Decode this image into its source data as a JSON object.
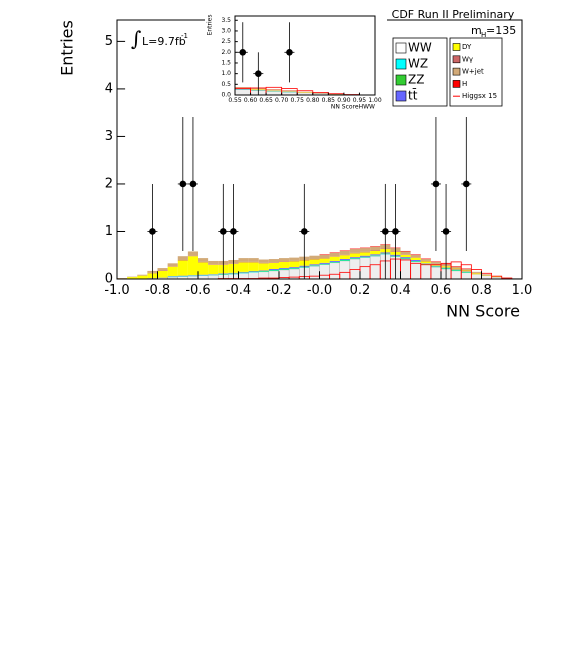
{
  "chart_data": {
    "type": "stacked-histogram",
    "title": "CDF Run II Preliminary",
    "xlabel": "NN Score",
    "ylabel": "Entries",
    "mass_label": "m",
    "mass_sub": "H",
    "mass_value": "=135",
    "lumi_integral": "∫",
    "lumi_label": "L=9.7fb",
    "lumi_sup": "-1",
    "xlim": [
      -1,
      1
    ],
    "ylim": [
      0,
      5.45
    ],
    "xticks": [
      {
        "value": -1,
        "label": "-1.0"
      },
      -0.8,
      -0.6,
      -0.4,
      -0.2,
      {
        "value": 0,
        "label": "-0.0"
      },
      0.2,
      0.4,
      0.6,
      0.8,
      {
        "value": 1,
        "label": "1.0"
      }
    ],
    "yticks": [
      0,
      1,
      2,
      3,
      4,
      5
    ],
    "bins": [
      -1,
      -0.95,
      -0.9,
      -0.85,
      -0.8,
      -0.75,
      -0.7,
      -0.65,
      -0.6,
      -0.55,
      -0.5,
      -0.45,
      -0.4,
      -0.35,
      -0.3,
      -0.25,
      -0.2,
      -0.15,
      -0.1,
      -0.05,
      0,
      0.05,
      0.1,
      0.15,
      0.2,
      0.25,
      0.3,
      0.35,
      0.4,
      0.45,
      0.5,
      0.55,
      0.6,
      0.65,
      0.7,
      0.75,
      0.8,
      0.85,
      0.9,
      0.95,
      1
    ],
    "series": [
      {
        "name": "WW",
        "color": "#eeeeee",
        "legend_column": 0,
        "values": [
          0,
          0.01,
          0.01,
          0.02,
          0.03,
          0.04,
          0.05,
          0.06,
          0.07,
          0.08,
          0.09,
          0.1,
          0.12,
          0.14,
          0.15,
          0.17,
          0.19,
          0.21,
          0.24,
          0.27,
          0.3,
          0.34,
          0.38,
          0.42,
          0.45,
          0.48,
          0.52,
          0.47,
          0.42,
          0.36,
          0.3,
          0.25,
          0.21,
          0.17,
          0.13,
          0.1,
          0.07,
          0.04,
          0.02,
          0.01
        ]
      },
      {
        "name": "WZ",
        "color": "#00ffff",
        "legend_column": 0,
        "values": [
          0,
          0,
          0,
          0,
          0,
          0.01,
          0.01,
          0.01,
          0.01,
          0.01,
          0.01,
          0.01,
          0.01,
          0.01,
          0.01,
          0.01,
          0.01,
          0.01,
          0.01,
          0.01,
          0.01,
          0.01,
          0.01,
          0.01,
          0.01,
          0.01,
          0.01,
          0.01,
          0.01,
          0.01,
          0.01,
          0.01,
          0.01,
          0.01,
          0.01,
          0,
          0,
          0,
          0,
          0
        ]
      },
      {
        "name": "ZZ",
        "color": "#33cc33",
        "legend_column": 0,
        "values": [
          0,
          0,
          0,
          0,
          0,
          0,
          0,
          0,
          0,
          0,
          0.01,
          0.01,
          0.01,
          0.01,
          0.01,
          0.01,
          0.01,
          0.01,
          0.01,
          0.01,
          0.01,
          0.01,
          0.01,
          0.01,
          0.01,
          0.01,
          0.01,
          0.01,
          0.01,
          0.01,
          0.01,
          0.01,
          0.01,
          0.01,
          0.01,
          0,
          0,
          0,
          0,
          0
        ]
      },
      {
        "name": "tt̄",
        "color": "#6666ff",
        "legend_column": 0,
        "values": [
          0,
          0,
          0,
          0,
          0,
          0.01,
          0.01,
          0.01,
          0.01,
          0.01,
          0.01,
          0.01,
          0.01,
          0.01,
          0.01,
          0.02,
          0.02,
          0.02,
          0.02,
          0.02,
          0.02,
          0.02,
          0.02,
          0.02,
          0.02,
          0.02,
          0.02,
          0.02,
          0.02,
          0.02,
          0.01,
          0.01,
          0.01,
          0.01,
          0.01,
          0,
          0,
          0,
          0,
          0
        ]
      },
      {
        "name": "DY",
        "color": "#ffff00",
        "legend_column": 1,
        "values": [
          0.01,
          0.03,
          0.06,
          0.1,
          0.14,
          0.2,
          0.32,
          0.4,
          0.26,
          0.2,
          0.18,
          0.19,
          0.2,
          0.18,
          0.15,
          0.13,
          0.13,
          0.12,
          0.11,
          0.1,
          0.09,
          0.09,
          0.08,
          0.08,
          0.07,
          0.07,
          0.07,
          0.06,
          0.05,
          0.05,
          0.04,
          0.03,
          0.03,
          0.02,
          0.02,
          0.02,
          0.01,
          0.01,
          0,
          0
        ]
      },
      {
        "name": "Wγ",
        "color": "#cc6666",
        "legend_column": 1,
        "values": [
          0,
          0,
          0,
          0.01,
          0.01,
          0.01,
          0.01,
          0.01,
          0.01,
          0.01,
          0.01,
          0.01,
          0.01,
          0.01,
          0.01,
          0.01,
          0.01,
          0.01,
          0.01,
          0.01,
          0.01,
          0.01,
          0.01,
          0.01,
          0.01,
          0.01,
          0.01,
          0.01,
          0.01,
          0.01,
          0.01,
          0.01,
          0.01,
          0.01,
          0.01,
          0.01,
          0.01,
          0,
          0,
          0
        ]
      },
      {
        "name": "W+jet",
        "color": "#d2aa78",
        "legend_column": 1,
        "values": [
          0.01,
          0.01,
          0.02,
          0.04,
          0.05,
          0.06,
          0.08,
          0.09,
          0.08,
          0.07,
          0.07,
          0.07,
          0.08,
          0.08,
          0.07,
          0.07,
          0.07,
          0.07,
          0.07,
          0.07,
          0.07,
          0.07,
          0.08,
          0.08,
          0.08,
          0.08,
          0.08,
          0.07,
          0.06,
          0.05,
          0.04,
          0.04,
          0.03,
          0.03,
          0.02,
          0.02,
          0.01,
          0.01,
          0.01,
          0
        ]
      },
      {
        "name": "H",
        "color": "#ff0000",
        "legend_column": 1,
        "values": [
          0,
          0,
          0,
          0,
          0,
          0,
          0,
          0,
          0,
          0,
          0,
          0,
          0,
          0,
          0,
          0,
          0,
          0,
          0,
          0,
          0.01,
          0.01,
          0.01,
          0.01,
          0.01,
          0.01,
          0.01,
          0.01,
          0.01,
          0.01,
          0.01,
          0.01,
          0.01,
          0.01,
          0.01,
          0,
          0,
          0,
          0,
          0
        ]
      }
    ],
    "signal": {
      "name": "Higgsx 15",
      "color": "#ff0000",
      "values": [
        0,
        0,
        0,
        0,
        0,
        0,
        0,
        0,
        0,
        0,
        0.01,
        0.01,
        0.01,
        0.01,
        0.02,
        0.02,
        0.03,
        0.04,
        0.05,
        0.06,
        0.08,
        0.1,
        0.14,
        0.2,
        0.26,
        0.3,
        0.38,
        0.42,
        0.4,
        0.33,
        0.3,
        0.3,
        0.33,
        0.36,
        0.3,
        0.2,
        0.12,
        0.06,
        0.02,
        0
      ]
    },
    "data_points": {
      "x": [
        -0.825,
        -0.675,
        -0.625,
        -0.475,
        -0.425,
        -0.075,
        0.325,
        0.375,
        0.575,
        0.625,
        0.725
      ],
      "values": [
        1,
        2,
        2,
        1,
        1,
        1,
        1,
        1,
        2,
        1,
        2
      ],
      "errors": [
        1,
        1.41,
        1.41,
        1,
        1,
        1,
        1,
        1,
        1.41,
        1,
        1.41
      ]
    },
    "inset": {
      "xlabel": "NN ScoreHWW",
      "ylabel": "Entries",
      "xlim": [
        0.55,
        1
      ],
      "xticks": [
        0.55,
        {
          "value": 0.6,
          "label": "0.60"
        },
        0.65,
        {
          "value": 0.7,
          "label": "0.70"
        },
        0.75,
        {
          "value": 0.8,
          "label": "0.80"
        },
        0.85,
        {
          "value": 0.9,
          "label": "0.90"
        },
        0.95,
        {
          "value": 1,
          "label": "1.00"
        }
      ],
      "ylim": [
        0,
        3.7
      ],
      "yticks": [
        {
          "value": 0,
          "label": "0.0"
        },
        0.5,
        {
          "value": 1,
          "label": "1.0"
        },
        1.5,
        {
          "value": 2,
          "label": "2.0"
        },
        2.5,
        {
          "value": 3,
          "label": "3.0"
        },
        3.5
      ]
    }
  }
}
